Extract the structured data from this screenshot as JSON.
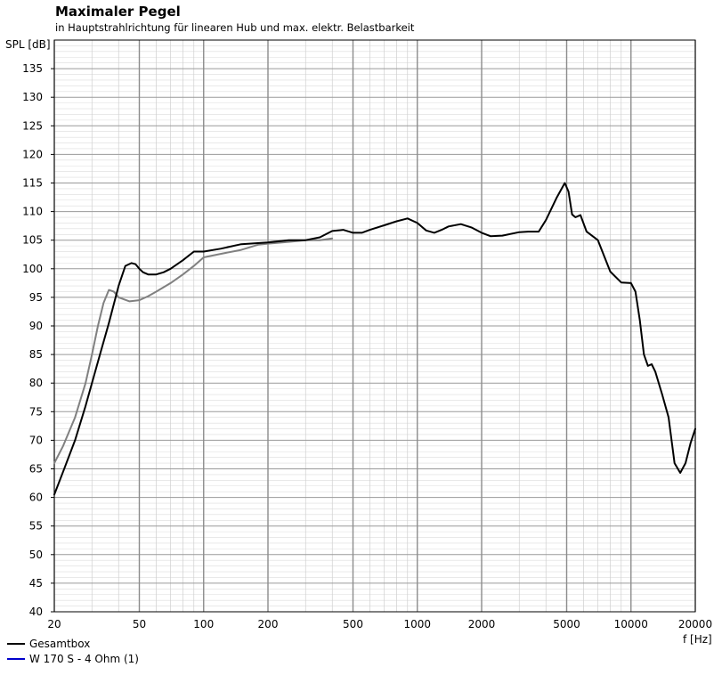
{
  "chart_data": {
    "type": "line",
    "title": "Maximaler Pegel",
    "subtitle": "in Hauptstrahlrichtung für linearen Hub und max. elektr. Belastbarkeit",
    "ylabel": "SPL [dB]",
    "xlabel": "f [Hz]",
    "x_scale": "log",
    "xlim": [
      20,
      20000
    ],
    "ylim": [
      40,
      140
    ],
    "x_ticks": [
      20,
      50,
      100,
      200,
      500,
      1000,
      2000,
      5000,
      10000,
      20000
    ],
    "x_tick_labels": [
      "20",
      "50",
      "100",
      "200",
      "500",
      "1000",
      "2000",
      "5000",
      "10000",
      "20000"
    ],
    "y_ticks": [
      40,
      45,
      50,
      55,
      60,
      65,
      70,
      75,
      80,
      85,
      90,
      95,
      100,
      105,
      110,
      115,
      120,
      125,
      130,
      135
    ],
    "grid": true,
    "legend_position": "bottom-left",
    "series": [
      {
        "name": "W 170 S - 4 Ohm (1)",
        "color": "#808080",
        "legend_color": "#0000cc",
        "x": [
          20,
          22,
          25,
          28,
          30,
          32,
          34,
          36,
          38,
          40,
          45,
          50,
          55,
          60,
          70,
          80,
          90,
          100,
          120,
          150,
          180,
          200,
          250,
          300,
          350,
          400
        ],
        "y": [
          66,
          69,
          74,
          80,
          85,
          90,
          94,
          96.3,
          96,
          95,
          94.3,
          94.5,
          95.2,
          96,
          97.5,
          99,
          100.5,
          102,
          102.6,
          103.3,
          104.2,
          104.4,
          104.7,
          105,
          105,
          105.3
        ]
      },
      {
        "name": "Gesamtbox",
        "color": "#000000",
        "legend_color": "#000000",
        "x": [
          20,
          22,
          25,
          28,
          30,
          33,
          36,
          40,
          43,
          46,
          48,
          50,
          52,
          55,
          60,
          65,
          70,
          80,
          90,
          100,
          120,
          150,
          200,
          250,
          300,
          350,
          400,
          450,
          500,
          550,
          600,
          700,
          800,
          900,
          1000,
          1100,
          1200,
          1300,
          1400,
          1600,
          1800,
          2000,
          2200,
          2500,
          3000,
          3300,
          3700,
          4000,
          4500,
          4900,
          5100,
          5300,
          5500,
          5800,
          6200,
          7000,
          8000,
          9000,
          10000,
          10500,
          11000,
          11500,
          12000,
          12500,
          13000,
          14000,
          15000,
          16000,
          17000,
          18000,
          19000,
          20000
        ],
        "y": [
          60.5,
          64.5,
          70,
          76,
          80,
          85.5,
          90.5,
          97,
          100.5,
          101,
          100.8,
          100,
          99.4,
          99,
          99,
          99.4,
          100,
          101.5,
          103,
          103,
          103.5,
          104.3,
          104.6,
          105,
          105,
          105.5,
          106.6,
          106.8,
          106.3,
          106.3,
          106.8,
          107.6,
          108.3,
          108.8,
          108,
          106.7,
          106.3,
          106.8,
          107.4,
          107.8,
          107.2,
          106.3,
          105.7,
          105.8,
          106.4,
          106.5,
          106.5,
          108.5,
          112.5,
          115,
          113.5,
          109.5,
          109,
          109.4,
          106.5,
          105,
          99.5,
          97.6,
          97.5,
          96,
          91,
          85,
          83,
          83.3,
          82,
          78,
          74,
          66,
          64.3,
          66,
          69.5,
          72
        ]
      }
    ]
  }
}
